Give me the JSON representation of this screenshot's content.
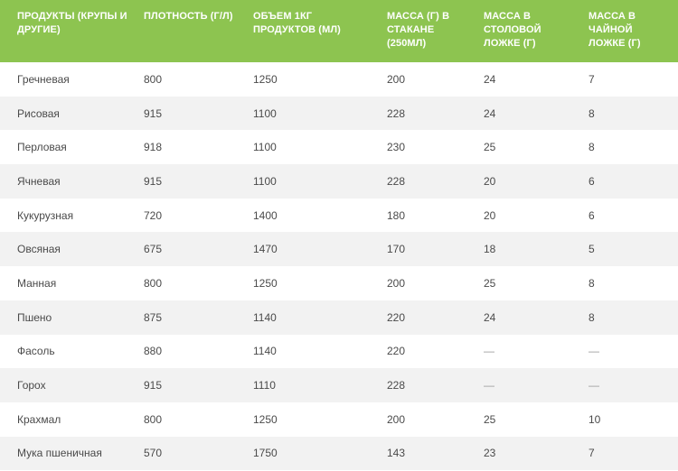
{
  "table": {
    "headers": [
      "ПРОДУКТЫ (КРУПЫ И ДРУГИЕ)",
      "ПЛОТНОСТЬ (Г/Л)",
      "ОБЪЕМ 1КГ ПРОДУКТОВ (МЛ)",
      "МАССА (Г) В СТАКАНЕ (250МЛ)",
      "МАССА В СТОЛОВОЙ ЛОЖКЕ (Г)",
      "МАССА В ЧАЙНОЙ ЛОЖКЕ (Г)"
    ],
    "rows": [
      [
        "Гречневая",
        "800",
        "1250",
        "200",
        "24",
        "7"
      ],
      [
        "Рисовая",
        "915",
        "1100",
        "228",
        "24",
        "8"
      ],
      [
        "Перловая",
        "918",
        "1100",
        "230",
        "25",
        "8"
      ],
      [
        "Ячневая",
        "915",
        "1100",
        "228",
        "20",
        "6"
      ],
      [
        "Кукурузная",
        "720",
        "1400",
        "180",
        "20",
        "6"
      ],
      [
        "Овсяная",
        "675",
        "1470",
        "170",
        "18",
        "5"
      ],
      [
        "Манная",
        "800",
        "1250",
        "200",
        "25",
        "8"
      ],
      [
        "Пшено",
        "875",
        "1140",
        "220",
        "24",
        "8"
      ],
      [
        "Фасоль",
        "880",
        "1140",
        "220",
        "—",
        "—"
      ],
      [
        "Горох",
        "915",
        "1110",
        "228",
        "—",
        "—"
      ],
      [
        "Крахмал",
        "800",
        "1250",
        "200",
        "25",
        "10"
      ],
      [
        "Мука пшеничная",
        "570",
        "1750",
        "143",
        "23",
        "7"
      ]
    ]
  },
  "colors": {
    "header_background": "#8dc450",
    "header_text": "#ffffff",
    "row_alt_background": "#f2f2f2",
    "cell_text": "#4a4a4a"
  }
}
